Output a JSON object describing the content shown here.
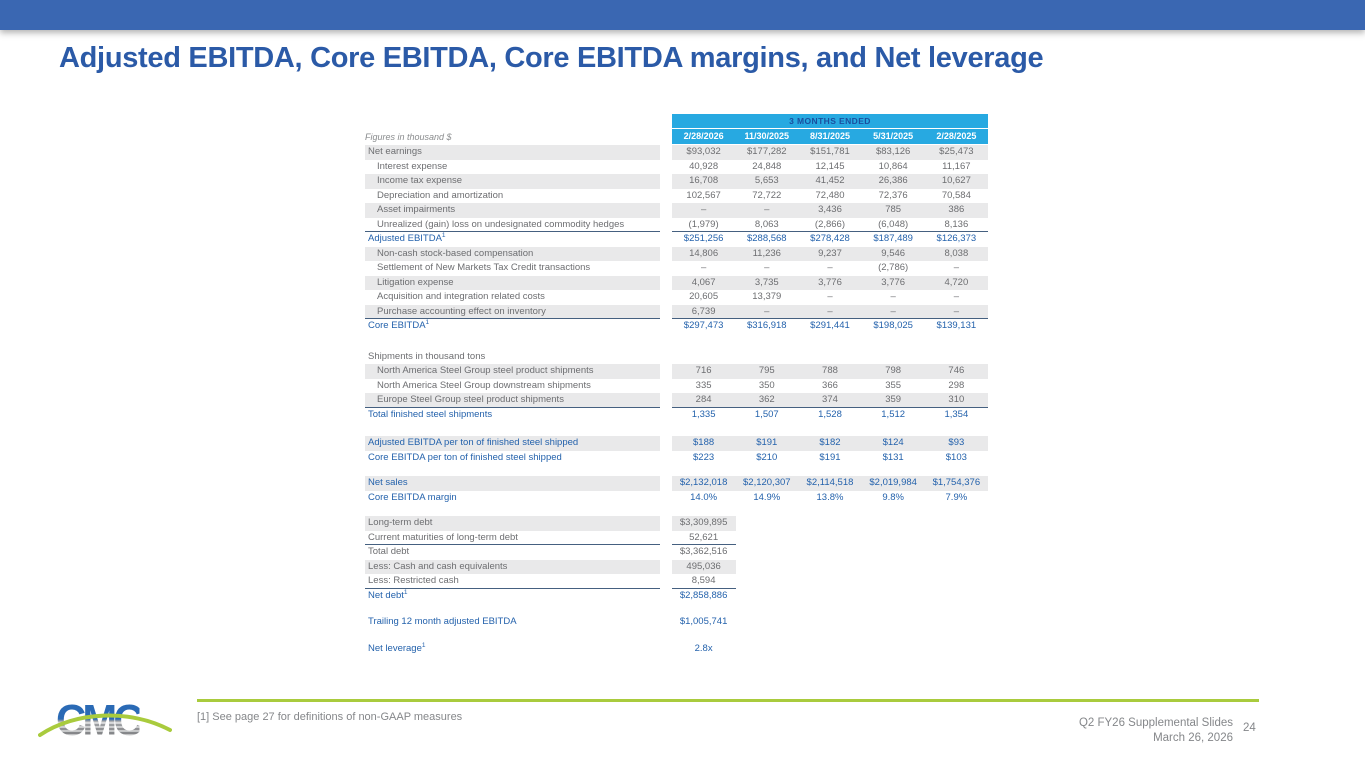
{
  "slide": {
    "title": "Adjusted EBITDA, Core EBITDA, Core EBITDA margins, and Net leverage",
    "page_number": "24"
  },
  "colors": {
    "topbar_blue": "#3a67b2",
    "title_blue": "#2b5aa7",
    "header_cyan": "#27a9e1",
    "header_navy_text": "#1a4e9e",
    "total_row_blue": "#2462ac",
    "body_gray": "#6d6e71",
    "row_shade": "#e9e9ea",
    "rule_navy": "#456080",
    "accent_green": "#a9cb3d",
    "footer_gray": "#85878a"
  },
  "table": {
    "header": {
      "note": "Figures in thousand $",
      "group_label": "3 MONTHS ENDED",
      "columns": [
        "2/28/2026",
        "11/30/2025",
        "8/31/2025",
        "5/31/2025",
        "2/28/2025"
      ]
    },
    "rows": [
      {
        "label": "Net earnings",
        "shaded": true,
        "values": [
          "$93,032",
          "$177,282",
          "$151,781",
          "$83,126",
          "$25,473"
        ]
      },
      {
        "label": "Interest expense",
        "indent": true,
        "values": [
          "40,928",
          "24,848",
          "12,145",
          "10,864",
          "11,167"
        ]
      },
      {
        "label": "Income tax expense",
        "indent": true,
        "shaded": true,
        "values": [
          "16,708",
          "5,653",
          "41,452",
          "26,386",
          "10,627"
        ]
      },
      {
        "label": "Depreciation and amortization",
        "indent": true,
        "values": [
          "102,567",
          "72,722",
          "72,480",
          "72,376",
          "70,584"
        ]
      },
      {
        "label": "Asset impairments",
        "indent": true,
        "shaded": true,
        "values": [
          "–",
          "–",
          "3,436",
          "785",
          "386"
        ]
      },
      {
        "label": "Unrealized (gain) loss on undesignated commodity hedges",
        "indent": true,
        "border": true,
        "values": [
          "(1,979)",
          "8,063",
          "(2,866)",
          "(6,048)",
          "8,136"
        ]
      },
      {
        "label": "Adjusted EBITDA",
        "sup": "1",
        "blue": true,
        "values": [
          "$251,256",
          "$288,568",
          "$278,428",
          "$187,489",
          "$126,373"
        ]
      },
      {
        "label": "Non-cash stock-based compensation",
        "indent": true,
        "shaded": true,
        "values": [
          "14,806",
          "11,236",
          "9,237",
          "9,546",
          "8,038"
        ]
      },
      {
        "label": "Settlement of New Markets Tax Credit transactions",
        "indent": true,
        "values": [
          "–",
          "–",
          "–",
          "(2,786)",
          "–"
        ]
      },
      {
        "label": "Litigation expense",
        "indent": true,
        "shaded": true,
        "values": [
          "4,067",
          "3,735",
          "3,776",
          "3,776",
          "4,720"
        ]
      },
      {
        "label": "Acquisition and integration related costs",
        "indent": true,
        "values": [
          "20,605",
          "13,379",
          "–",
          "–",
          "–"
        ]
      },
      {
        "label": "Purchase accounting effect on inventory",
        "indent": true,
        "shaded": true,
        "border": true,
        "values": [
          "6,739",
          "–",
          "–",
          "–",
          "–"
        ]
      },
      {
        "label": "Core EBITDA",
        "sup": "1",
        "blue": true,
        "values": [
          "$297,473",
          "$316,918",
          "$291,441",
          "$198,025",
          "$139,131"
        ]
      },
      {
        "type": "spacer",
        "height": 16
      },
      {
        "label": "Shipments in thousand tons",
        "subhead": true,
        "values": []
      },
      {
        "label": "North America Steel Group steel product shipments",
        "indent": true,
        "shaded": true,
        "values": [
          "716",
          "795",
          "788",
          "798",
          "746"
        ]
      },
      {
        "label": "North America Steel Group downstream shipments",
        "indent": true,
        "values": [
          "335",
          "350",
          "366",
          "355",
          "298"
        ]
      },
      {
        "label": "Europe Steel Group steel product shipments",
        "indent": true,
        "shaded": true,
        "border": true,
        "values": [
          "284",
          "362",
          "374",
          "359",
          "310"
        ]
      },
      {
        "label": "Total finished steel shipments",
        "blue": true,
        "values": [
          "1,335",
          "1,507",
          "1,528",
          "1,512",
          "1,354"
        ]
      },
      {
        "type": "spacer",
        "height": 14
      },
      {
        "label": "Adjusted EBITDA per ton of finished steel shipped",
        "blue": true,
        "shaded": true,
        "values": [
          "$188",
          "$191",
          "$182",
          "$124",
          "$93"
        ]
      },
      {
        "label": "Core EBITDA per ton of finished steel shipped",
        "blue": true,
        "values": [
          "$223",
          "$210",
          "$191",
          "$131",
          "$103"
        ]
      },
      {
        "type": "spacer",
        "height": 11
      },
      {
        "label": "Net sales",
        "blue": true,
        "shaded": true,
        "values": [
          "$2,132,018",
          "$2,120,307",
          "$2,114,518",
          "$2,019,984",
          "$1,754,376"
        ]
      },
      {
        "label": "Core EBITDA margin",
        "blue": true,
        "values": [
          "14.0%",
          "14.9%",
          "13.8%",
          "9.8%",
          "7.9%"
        ]
      },
      {
        "type": "spacer",
        "height": 11
      },
      {
        "label": "Long-term debt",
        "shaded": true,
        "single": true,
        "values": [
          "$3,309,895"
        ]
      },
      {
        "label": "Current maturities of long-term debt",
        "border": true,
        "single": true,
        "values": [
          "52,621"
        ]
      },
      {
        "label": "Total debt",
        "single": true,
        "values": [
          "$3,362,516"
        ]
      },
      {
        "label": "Less: Cash and cash equivalents",
        "shaded": true,
        "single": true,
        "values": [
          "495,036"
        ]
      },
      {
        "label": "Less: Restricted cash",
        "border": true,
        "single": true,
        "values": [
          "8,594"
        ]
      },
      {
        "label": "Net debt",
        "sup": "1",
        "blue": true,
        "single": true,
        "values": [
          "$2,858,886"
        ]
      },
      {
        "type": "spacer",
        "height": 12
      },
      {
        "label": "Trailing 12 month adjusted EBITDA",
        "blue": true,
        "single": true,
        "values": [
          "$1,005,741"
        ]
      },
      {
        "type": "spacer",
        "height": 12
      },
      {
        "label": "Net leverage",
        "sup": "1",
        "blue": true,
        "single": true,
        "values": [
          "2.8x"
        ]
      }
    ]
  },
  "footer": {
    "footnote": "[1] See page 27 for definitions of non-GAAP measures",
    "deck_name": "Q2 FY26 Supplemental Slides",
    "deck_date": "March 26, 2026",
    "logo_text": "CMC"
  }
}
